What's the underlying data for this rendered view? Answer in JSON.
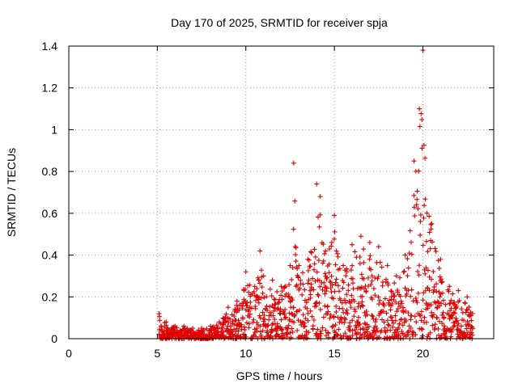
{
  "chart_data": {
    "type": "scatter",
    "title": "Day 170 of 2025, SRMTID for receiver spja",
    "xlabel": "GPS time / hours",
    "ylabel": "SRMTID / TECUs",
    "xlim": [
      0,
      24
    ],
    "ylim": [
      0,
      1.4
    ],
    "x_ticks": [
      0,
      5,
      10,
      15,
      20
    ],
    "y_ticks": [
      0,
      0.2,
      0.4,
      0.6,
      0.8,
      1,
      1.2,
      1.4
    ],
    "x_tick_labels": [
      "0",
      "5",
      "10",
      "15",
      "20"
    ],
    "y_tick_labels": [
      "0",
      "0.2",
      "0.4",
      "0.6",
      "0.8",
      "1",
      "1.2",
      "1.4"
    ],
    "grid": true,
    "marker": "+",
    "color": "#e00000",
    "series": [
      {
        "name": "SRMTID",
        "envelope_note": "approximate upper envelope of the scatter (hour, TECU)",
        "x": [
          5.1,
          5.5,
          6.0,
          6.5,
          7.0,
          7.5,
          8.0,
          8.5,
          9.0,
          9.5,
          10.0,
          10.5,
          10.8,
          11.0,
          11.5,
          12.0,
          12.5,
          12.7,
          13.0,
          13.5,
          14.0,
          14.2,
          14.5,
          15.0,
          15.5,
          16.0,
          16.5,
          17.0,
          17.5,
          18.0,
          18.5,
          19.0,
          19.5,
          19.8,
          20.0,
          20.5,
          21.0,
          21.5,
          22.0,
          22.5,
          22.8
        ],
        "y": [
          0.12,
          0.08,
          0.06,
          0.06,
          0.05,
          0.05,
          0.06,
          0.08,
          0.15,
          0.18,
          0.32,
          0.25,
          0.42,
          0.3,
          0.28,
          0.25,
          0.35,
          0.84,
          0.35,
          0.38,
          0.74,
          0.68,
          0.42,
          0.59,
          0.35,
          0.45,
          0.49,
          0.46,
          0.44,
          0.35,
          0.3,
          0.4,
          0.85,
          1.1,
          1.38,
          0.55,
          0.38,
          0.25,
          0.23,
          0.2,
          0.12
        ]
      }
    ]
  }
}
